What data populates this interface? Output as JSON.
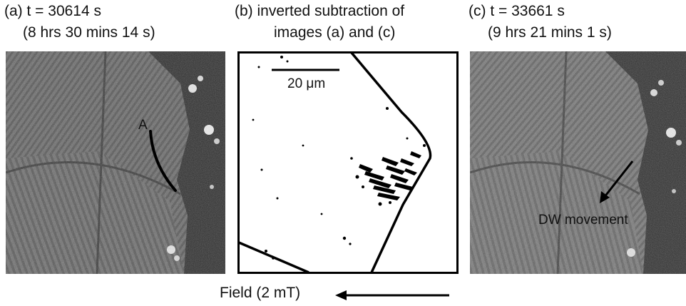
{
  "panels": {
    "a": {
      "title_line1": "(a) t = 30614 s",
      "title_line2": "(8 hrs 30 mins 14 s)",
      "marker_label": "A"
    },
    "b": {
      "title_line1": "(b) inverted subtraction of",
      "title_line2": "images (a) and (c)",
      "scalebar_label": "20 μm"
    },
    "c": {
      "title_line1": "(c) t = 33661 s",
      "title_line2": "(9 hrs 21 mins 1 s)",
      "annotation": "DW movement"
    }
  },
  "field": {
    "label": "Field (2 mT)"
  },
  "colors": {
    "image_dark": "#2a2a2a",
    "image_mid": "#6d6d6d",
    "image_light": "#bdbdbd",
    "ink": "#000000",
    "text": "#111111"
  }
}
